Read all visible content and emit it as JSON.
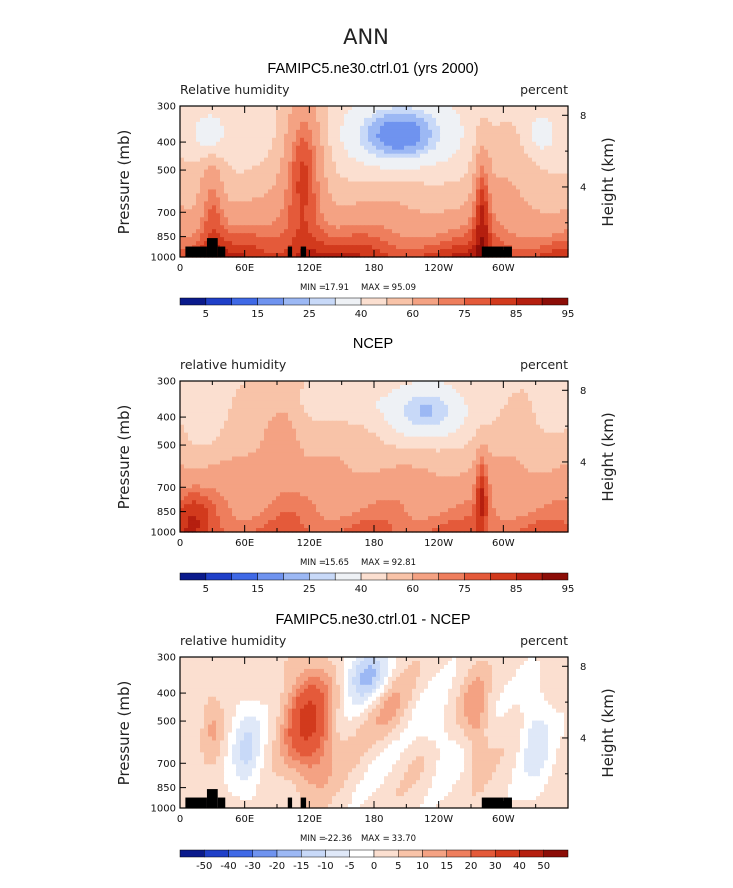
{
  "figure": {
    "title": "ANN",
    "colors": {
      "abs_scale": [
        "#0a1a8c",
        "#1f3fc8",
        "#3f69e6",
        "#6f93ef",
        "#9cb8f4",
        "#c8d9f8",
        "#eef1f5",
        "#fbdfd0",
        "#f8c3a8",
        "#f4a283",
        "#ee7e5d",
        "#e45a3a",
        "#d23a1d",
        "#b51f0f",
        "#8c0d07"
      ],
      "diff_scale": [
        "#0a1a8c",
        "#1f3fc8",
        "#3f69e6",
        "#6f93ef",
        "#9cb8f4",
        "#c8d9f8",
        "#dfe8f8",
        "#ffffff",
        "#fbdfd0",
        "#f8c3a8",
        "#f4a283",
        "#ee7e5d",
        "#e45a3a",
        "#d23a1d",
        "#b51f0f",
        "#8c0d07"
      ],
      "land_mask": "#000000"
    }
  },
  "chart_data": [
    {
      "type": "heatmap",
      "title": "FAMIPC5.ne30.ctrl.01 (yrs 2000)",
      "left_label": "Relative humidity",
      "right_label": "percent",
      "ylabel": "Pressure (mb)",
      "y2label": "Height (km)",
      "x_ticks": [
        "0",
        "60E",
        "120E",
        "180",
        "120W",
        "60W"
      ],
      "y_ticks": [
        "300",
        "400",
        "500",
        "700",
        "850",
        "1000"
      ],
      "y2_ticks": [
        "8",
        "4"
      ],
      "ylim": [
        1000,
        300
      ],
      "stats": {
        "min_label": "MIN =",
        "min": "17.91",
        "max_label": "MAX =",
        "max": "95.09"
      },
      "colorbar_labels": [
        "5",
        "15",
        "25",
        "40",
        "60",
        "75",
        "85",
        "95"
      ],
      "levels": [
        5,
        10,
        15,
        20,
        25,
        30,
        40,
        50,
        60,
        70,
        75,
        80,
        85,
        90,
        95
      ]
    },
    {
      "type": "heatmap",
      "title": "NCEP",
      "left_label": "relative humidity",
      "right_label": "percent",
      "ylabel": "Pressure (mb)",
      "y2label": "Height (km)",
      "x_ticks": [
        "0",
        "60E",
        "120E",
        "180",
        "120W",
        "60W"
      ],
      "y_ticks": [
        "300",
        "400",
        "500",
        "700",
        "850",
        "1000"
      ],
      "y2_ticks": [
        "8",
        "4"
      ],
      "ylim": [
        1000,
        300
      ],
      "stats": {
        "min_label": "MIN =",
        "min": "15.65",
        "max_label": "MAX =",
        "max": "92.81"
      },
      "colorbar_labels": [
        "5",
        "15",
        "25",
        "40",
        "60",
        "75",
        "85",
        "95"
      ],
      "levels": [
        5,
        10,
        15,
        20,
        25,
        30,
        40,
        50,
        60,
        70,
        75,
        80,
        85,
        90,
        95
      ]
    },
    {
      "type": "heatmap",
      "title": "FAMIPC5.ne30.ctrl.01 - NCEP",
      "left_label": "relative humidity",
      "right_label": "percent",
      "ylabel": "Pressure (mb)",
      "y2label": "Height (km)",
      "x_ticks": [
        "0",
        "60E",
        "120E",
        "180",
        "120W",
        "60W"
      ],
      "y_ticks": [
        "300",
        "400",
        "500",
        "700",
        "850",
        "1000"
      ],
      "y2_ticks": [
        "8",
        "4"
      ],
      "ylim": [
        1000,
        300
      ],
      "stats": {
        "min_label": "MIN =",
        "min": "-22.36",
        "max_label": "MAX =",
        "max": "33.70"
      },
      "colorbar_labels": [
        "-50",
        "-40",
        "-30",
        "-20",
        "-15",
        "-10",
        "-5",
        "0",
        "5",
        "10",
        "15",
        "20",
        "30",
        "40",
        "50"
      ],
      "levels": [
        -50,
        -40,
        -30,
        -20,
        -15,
        -10,
        -5,
        0,
        5,
        10,
        15,
        20,
        30,
        40,
        50
      ]
    }
  ]
}
